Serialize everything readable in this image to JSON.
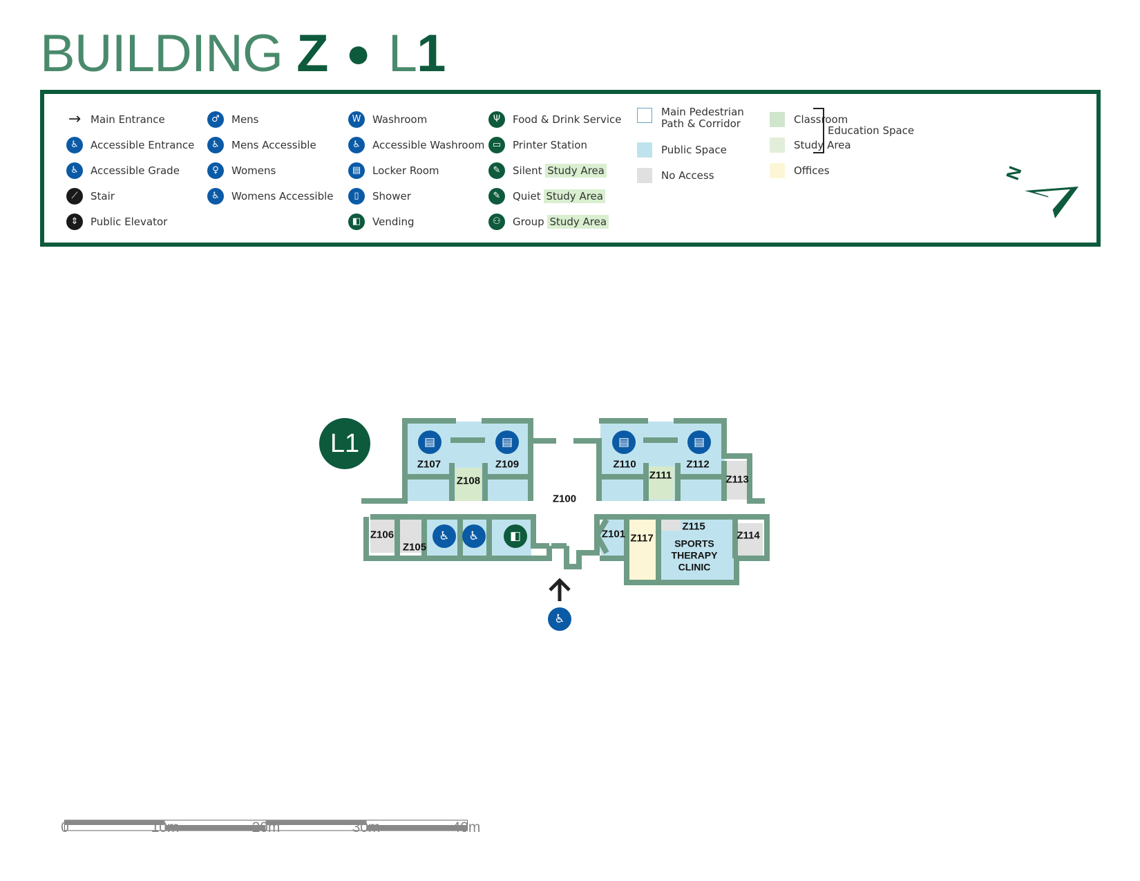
{
  "title": {
    "prefix": "BUILDING",
    "building": "Z",
    "level_prefix": "L",
    "level_number": "1"
  },
  "legend": {
    "col1": [
      {
        "icon": "main-entrance-arrow-icon",
        "glyph": "→",
        "label": "Main Entrance"
      },
      {
        "icon": "accessible-entrance-icon",
        "glyph": "♿",
        "label": "Accessible Entrance"
      },
      {
        "icon": "accessible-grade-icon",
        "glyph": "♿",
        "label": "Accessible Grade"
      },
      {
        "icon": "stair-icon",
        "glyph": "⟋",
        "label": "Stair"
      },
      {
        "icon": "public-elevator-icon",
        "glyph": "⇕",
        "label": "Public Elevator"
      }
    ],
    "col2": [
      {
        "icon": "mens-icon",
        "glyph": "♂",
        "label": "Mens"
      },
      {
        "icon": "mens-accessible-icon",
        "glyph": "♿",
        "label": "Mens Accessible"
      },
      {
        "icon": "womens-icon",
        "glyph": "♀",
        "label": "Womens"
      },
      {
        "icon": "womens-accessible-icon",
        "glyph": "♿",
        "label": "Womens Accessible"
      }
    ],
    "col3": [
      {
        "icon": "washroom-icon",
        "glyph": "W",
        "label": "Washroom"
      },
      {
        "icon": "accessible-washroom-icon",
        "glyph": "♿",
        "label": "Accessible Washroom"
      },
      {
        "icon": "locker-room-icon",
        "glyph": "▤",
        "label": "Locker Room"
      },
      {
        "icon": "shower-icon",
        "glyph": "▯",
        "label": "Shower"
      },
      {
        "icon": "vending-icon",
        "glyph": "◧",
        "label": "Vending"
      }
    ],
    "col4": [
      {
        "icon": "food-drink-icon",
        "glyph": "Ψ",
        "label": "Food & Drink Service"
      },
      {
        "icon": "printer-station-icon",
        "glyph": "▭",
        "label": "Printer Station"
      },
      {
        "icon": "silent-study-icon",
        "glyph": "✎",
        "label": "Silent",
        "hl": "Study Area"
      },
      {
        "icon": "quiet-study-icon",
        "glyph": "✎",
        "label": "Quiet",
        "hl": "Study Area"
      },
      {
        "icon": "group-study-icon",
        "glyph": "⚇",
        "label": "Group",
        "hl": "Study Area"
      }
    ],
    "col5": [
      {
        "swatch": "corridor-swatch",
        "label1": "Main Pedestrian",
        "label2": "Path & Corridor"
      },
      {
        "swatch": "public-space-swatch",
        "label": "Public Space"
      },
      {
        "swatch": "no-access-swatch",
        "label": "No Access"
      }
    ],
    "col6": [
      {
        "swatch": "classroom-swatch",
        "label": "Classroom"
      },
      {
        "swatch": "study-area-swatch",
        "label": "Study Area"
      },
      {
        "swatch": "offices-swatch",
        "label": "Offices"
      }
    ],
    "education_space": "Education Space",
    "north_label": "N"
  },
  "colors": {
    "wall": "#6f9c86",
    "public": "#bfe3ee",
    "no_access": "#e0e0e0",
    "classroom": "#cfe6cc",
    "study": "#e2eed9",
    "offices": "#fdf6d6",
    "dark_green": "#0e5a3c",
    "blue": "#0b5aa6"
  },
  "plan": {
    "level_badge": "L1",
    "rooms": {
      "z107": "Z107",
      "z108": "Z108",
      "z109": "Z109",
      "z110": "Z110",
      "z111": "Z111",
      "z112": "Z112",
      "z113": "Z113",
      "z100": "Z100",
      "z106": "Z106",
      "z105": "Z105",
      "z101": "Z101",
      "z117": "Z117",
      "z115": "Z115",
      "z114": "Z114",
      "clinic1": "SPORTS",
      "clinic2": "THERAPY",
      "clinic3": "CLINIC"
    }
  },
  "scale": {
    "ticks": [
      "0",
      "10m",
      "20m",
      "30m",
      "40m"
    ]
  }
}
